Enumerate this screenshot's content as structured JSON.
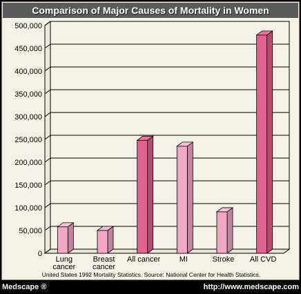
{
  "header": {
    "title": "Comparison of Major Causes of Mortality in Women"
  },
  "footer": {
    "source": "United States 1992 Mortality Statistics. Source: National Center for Health Statistics.",
    "brand": "Medscape ®",
    "url": "http://www.medscape.com"
  },
  "colors": {
    "light_pink": "#f0a8c4",
    "dark_pink": "#e0628f",
    "background": "#f4f1e6",
    "title_band": "#5a5a5a"
  },
  "chart_data": {
    "type": "bar",
    "title": "Comparison of Major Causes of Mortality in Women",
    "categories": [
      [
        "Lung",
        "cancer"
      ],
      [
        "Breast",
        "cancer"
      ],
      [
        "All cancer"
      ],
      [
        "MI"
      ],
      [
        "Stroke"
      ],
      [
        "All CVD"
      ]
    ],
    "values": [
      58000,
      50000,
      248000,
      235000,
      91000,
      479000
    ],
    "bar_colors": [
      "light_pink",
      "light_pink",
      "dark_pink",
      "light_pink",
      "light_pink",
      "dark_pink"
    ],
    "ylim": [
      0,
      500000
    ],
    "yticks": [
      0,
      50000,
      100000,
      150000,
      200000,
      250000,
      300000,
      350000,
      400000,
      450000,
      500000
    ],
    "ytick_labels": [
      "0",
      "50,000",
      "100,000",
      "150,000",
      "200,000",
      "250,000",
      "300,000",
      "350,000",
      "400,000",
      "450,000",
      "500,000"
    ],
    "grid": true,
    "style": "3d"
  }
}
